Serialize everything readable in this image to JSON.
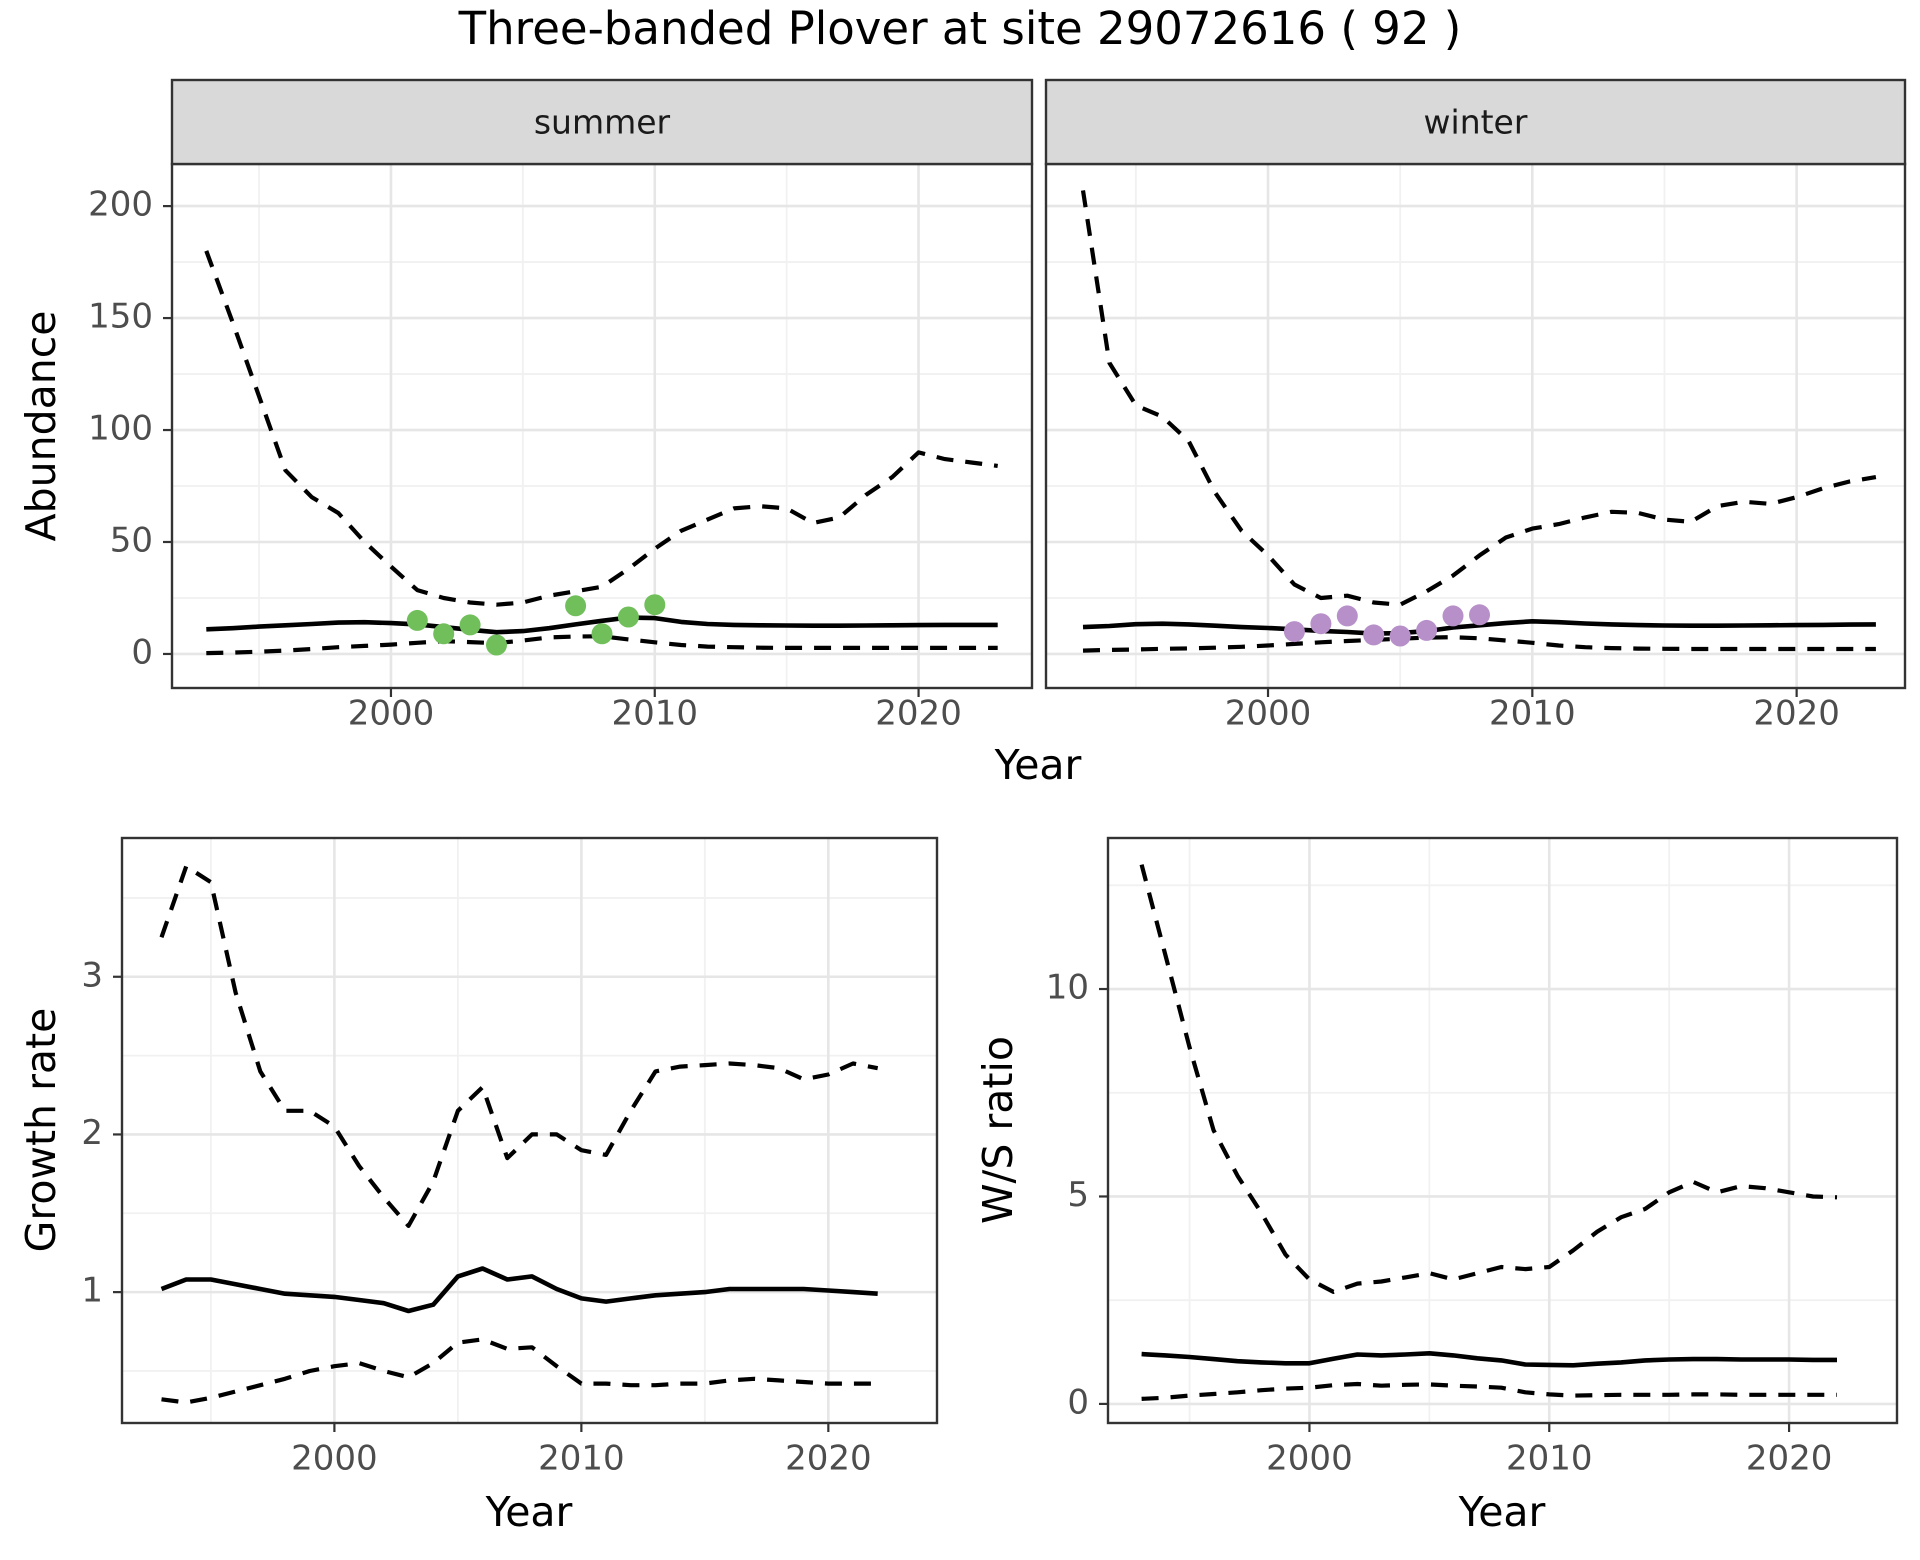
{
  "title": "Three-banded Plover at site 29072616 ( 92 )",
  "shared_x_title": "Year",
  "colors": {
    "line": "#000000",
    "summer_points": "#70BF5B",
    "winter_points": "#B78FC9",
    "strip_fill": "#D9D9D9",
    "panel_border": "#333333",
    "grid_major": "#E6E6E6",
    "grid_minor": "#F1F1F1",
    "tick_label": "#4D4D4D",
    "axis_title": "#000000",
    "panel_bg": "#FFFFFF"
  },
  "chart_data": [
    {
      "id": "abundance-summer",
      "type": "line",
      "facet_label": "summer",
      "y_title": "Abundance",
      "x_title": "Year",
      "grid": true,
      "legend": "none",
      "x_ticks": [
        2000,
        2010,
        2020
      ],
      "x_minor": [
        1995,
        2005,
        2015
      ],
      "y_ticks": [
        0,
        50,
        100,
        150,
        200
      ],
      "y_minor": [
        25,
        75,
        125,
        175
      ],
      "xlim": [
        1991.7,
        2024.3
      ],
      "ylim": [
        -15.2,
        218.8
      ],
      "x": [
        1993,
        1994,
        1995,
        1996,
        1997,
        1998,
        1999,
        2000,
        2001,
        2002,
        2003,
        2004,
        2005,
        2006,
        2007,
        2008,
        2009,
        2010,
        2011,
        2012,
        2013,
        2014,
        2015,
        2016,
        2017,
        2018,
        2019,
        2020,
        2021,
        2022,
        2023
      ],
      "series": [
        {
          "name": "upper 95% CI",
          "style": "dashed",
          "values": [
            180,
            148,
            115,
            82,
            70,
            63,
            50,
            39,
            28.5,
            25,
            23,
            22,
            23,
            26,
            28,
            30,
            38,
            47,
            55,
            60,
            65,
            66,
            65,
            58.5,
            61,
            71,
            79,
            90,
            87,
            85.5,
            84
          ]
        },
        {
          "name": "median",
          "style": "solid",
          "values": [
            11,
            11.5,
            12.2,
            12.8,
            13.4,
            14,
            14.2,
            13.8,
            13.2,
            12,
            10.8,
            9.7,
            10.2,
            11.5,
            13.2,
            14.8,
            16.3,
            16,
            14.3,
            13.4,
            13,
            12.8,
            12.7,
            12.6,
            12.6,
            12.7,
            12.8,
            12.9,
            13,
            13,
            13
          ]
        },
        {
          "name": "lower 95% CI",
          "style": "dashed",
          "values": [
            0.4,
            0.6,
            1,
            1.5,
            2.2,
            3,
            3.6,
            4.2,
            5,
            5.7,
            5.3,
            4.8,
            6,
            7.4,
            7.8,
            7.9,
            6.5,
            5.2,
            4,
            3.3,
            3,
            2.8,
            2.7,
            2.7,
            2.7,
            2.7,
            2.7,
            2.7,
            2.7,
            2.7,
            2.7
          ]
        }
      ],
      "points": {
        "name": "observed summer counts",
        "color_key": "summer_points",
        "x": [
          2001,
          2002,
          2003,
          2004,
          2007,
          2008,
          2009,
          2010
        ],
        "y": [
          15,
          9,
          13,
          4,
          21.5,
          9,
          16.5,
          22
        ]
      }
    },
    {
      "id": "abundance-winter",
      "type": "line",
      "facet_label": "winter",
      "y_title": "Abundance",
      "x_title": "Year",
      "grid": true,
      "legend": "none",
      "x_ticks": [
        2000,
        2010,
        2020
      ],
      "x_minor": [
        1995,
        2005,
        2015
      ],
      "y_ticks": [
        0,
        50,
        100,
        150,
        200
      ],
      "y_minor": [
        25,
        75,
        125,
        175
      ],
      "xlim": [
        1991.6,
        2024.1
      ],
      "ylim": [
        -15.2,
        218.8
      ],
      "x": [
        1993,
        1994,
        1995,
        1996,
        1997,
        1998,
        1999,
        2000,
        2001,
        2002,
        2003,
        2004,
        2005,
        2006,
        2007,
        2008,
        2009,
        2010,
        2011,
        2012,
        2013,
        2014,
        2015,
        2016,
        2017,
        2018,
        2019,
        2020,
        2021,
        2022,
        2023
      ],
      "series": [
        {
          "name": "upper 95% CI",
          "style": "dashed",
          "values": [
            207,
            130,
            111,
            106,
            95,
            72,
            55,
            44,
            31,
            25,
            26,
            23,
            22,
            28,
            35,
            44,
            52,
            56,
            58,
            61,
            63.5,
            63,
            60,
            59,
            66,
            68,
            67,
            70,
            74,
            77,
            79
          ]
        },
        {
          "name": "median",
          "style": "solid",
          "values": [
            12,
            12.5,
            13.3,
            13.5,
            13.2,
            12.6,
            12,
            11.6,
            11,
            10.3,
            9.8,
            9.1,
            9.3,
            10.2,
            11.8,
            12.8,
            13.8,
            14.6,
            14.2,
            13.6,
            13.2,
            12.9,
            12.7,
            12.6,
            12.6,
            12.7,
            12.8,
            12.9,
            13,
            13.1,
            13.2
          ]
        },
        {
          "name": "lower 95% CI",
          "style": "dashed",
          "values": [
            1.5,
            1.8,
            2,
            2.3,
            2.5,
            2.8,
            3.2,
            3.8,
            4.5,
            5.2,
            5.8,
            6.3,
            6.8,
            7.3,
            7.5,
            7,
            6,
            5,
            3.8,
            3,
            2.6,
            2.4,
            2.3,
            2.2,
            2.2,
            2.2,
            2.2,
            2.2,
            2.2,
            2.2,
            2.2
          ]
        }
      ],
      "points": {
        "name": "observed winter counts",
        "color_key": "winter_points",
        "x": [
          2001,
          2002,
          2003,
          2004,
          2005,
          2006,
          2007,
          2008
        ],
        "y": [
          10,
          13.5,
          17,
          8.5,
          8,
          10.5,
          17,
          17.5
        ]
      }
    },
    {
      "id": "growth-rate",
      "type": "line",
      "facet_label": "",
      "y_title": "Growth rate",
      "x_title": "Year",
      "grid": true,
      "legend": "none",
      "x_ticks": [
        2000,
        2010,
        2020
      ],
      "x_minor": [
        1995,
        2005,
        2015
      ],
      "y_ticks": [
        1,
        2,
        3
      ],
      "y_minor": [
        0.5,
        1.5,
        2.5,
        3.5
      ],
      "xlim": [
        1991.4,
        2024.4
      ],
      "ylim": [
        0.17,
        3.88
      ],
      "x": [
        1993,
        1994,
        1995,
        1996,
        1997,
        1998,
        1999,
        2000,
        2001,
        2002,
        2003,
        2004,
        2005,
        2006,
        2007,
        2008,
        2009,
        2010,
        2011,
        2012,
        2013,
        2014,
        2015,
        2016,
        2017,
        2018,
        2019,
        2020,
        2021,
        2022
      ],
      "series": [
        {
          "name": "upper 95% CI",
          "style": "dashed",
          "values": [
            3.25,
            3.7,
            3.6,
            2.9,
            2.4,
            2.15,
            2.15,
            2.05,
            1.8,
            1.6,
            1.42,
            1.7,
            2.15,
            2.3,
            1.85,
            2.0,
            2.0,
            1.9,
            1.87,
            2.15,
            2.4,
            2.43,
            2.44,
            2.45,
            2.44,
            2.42,
            2.35,
            2.38,
            2.45,
            2.42
          ]
        },
        {
          "name": "median",
          "style": "solid",
          "values": [
            1.02,
            1.08,
            1.08,
            1.05,
            1.02,
            0.99,
            0.98,
            0.97,
            0.95,
            0.93,
            0.88,
            0.92,
            1.1,
            1.15,
            1.08,
            1.1,
            1.02,
            0.96,
            0.94,
            0.96,
            0.98,
            0.99,
            1.0,
            1.02,
            1.02,
            1.02,
            1.02,
            1.01,
            1.0,
            0.99
          ]
        },
        {
          "name": "lower 95% CI",
          "style": "dashed",
          "values": [
            0.32,
            0.3,
            0.33,
            0.37,
            0.41,
            0.45,
            0.5,
            0.53,
            0.55,
            0.5,
            0.46,
            0.55,
            0.68,
            0.7,
            0.64,
            0.65,
            0.53,
            0.42,
            0.42,
            0.41,
            0.41,
            0.42,
            0.42,
            0.44,
            0.45,
            0.44,
            0.43,
            0.42,
            0.42,
            0.42
          ]
        }
      ],
      "points": null
    },
    {
      "id": "ws-ratio",
      "type": "line",
      "facet_label": "",
      "y_title": "W/S ratio",
      "x_title": "Year",
      "grid": true,
      "legend": "none",
      "x_ticks": [
        2000,
        2010,
        2020
      ],
      "x_minor": [
        1995,
        2005,
        2015
      ],
      "y_ticks": [
        0,
        5,
        10
      ],
      "y_minor": [
        2.5,
        7.5,
        12.5
      ],
      "xlim": [
        1991.6,
        2024.5
      ],
      "ylim": [
        -0.46,
        13.64
      ],
      "x": [
        1993,
        1994,
        1995,
        1996,
        1997,
        1998,
        1999,
        2000,
        2001,
        2002,
        2003,
        2004,
        2005,
        2006,
        2007,
        2008,
        2009,
        2010,
        2011,
        2012,
        2013,
        2014,
        2015,
        2016,
        2017,
        2018,
        2019,
        2020,
        2021,
        2022
      ],
      "series": [
        {
          "name": "upper 95% CI",
          "style": "dashed",
          "values": [
            13,
            10.8,
            8.6,
            6.6,
            5.5,
            4.6,
            3.6,
            3.0,
            2.7,
            2.9,
            2.95,
            3.05,
            3.15,
            3.0,
            3.15,
            3.3,
            3.25,
            3.3,
            3.7,
            4.15,
            4.5,
            4.7,
            5.1,
            5.35,
            5.1,
            5.25,
            5.2,
            5.1,
            5.0,
            4.98
          ]
        },
        {
          "name": "median",
          "style": "solid",
          "values": [
            1.2,
            1.17,
            1.13,
            1.08,
            1.03,
            1.0,
            0.98,
            0.98,
            1.09,
            1.19,
            1.17,
            1.19,
            1.22,
            1.17,
            1.1,
            1.05,
            0.95,
            0.94,
            0.93,
            0.97,
            1.0,
            1.05,
            1.07,
            1.08,
            1.08,
            1.07,
            1.07,
            1.07,
            1.06,
            1.06
          ]
        },
        {
          "name": "lower 95% CI",
          "style": "dashed",
          "values": [
            0.12,
            0.15,
            0.2,
            0.24,
            0.28,
            0.33,
            0.37,
            0.39,
            0.45,
            0.48,
            0.44,
            0.46,
            0.47,
            0.44,
            0.42,
            0.39,
            0.28,
            0.23,
            0.2,
            0.21,
            0.22,
            0.22,
            0.22,
            0.23,
            0.23,
            0.22,
            0.22,
            0.22,
            0.22,
            0.22
          ]
        }
      ],
      "points": null
    }
  ]
}
